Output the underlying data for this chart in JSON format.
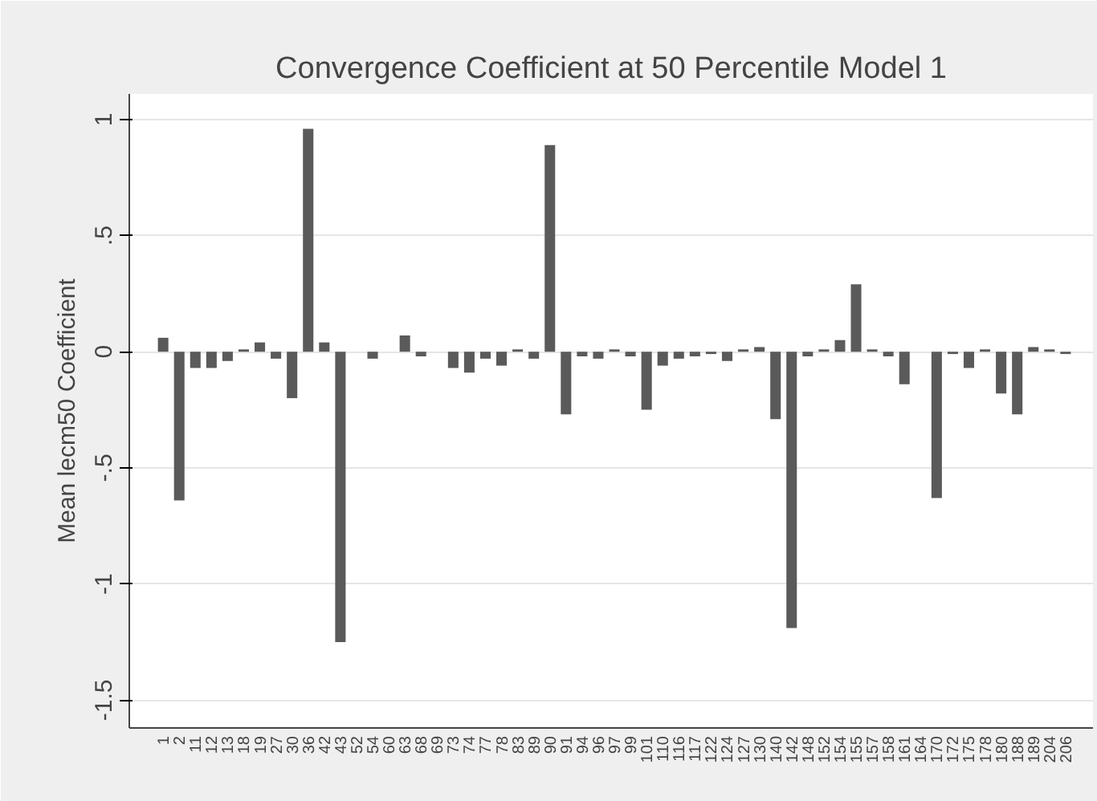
{
  "chart_data": {
    "type": "bar",
    "title": "Convergence Coefficient at 50 Percentile Model 1",
    "ylabel": "Mean lecm50 Coefficient",
    "categories": [
      "1",
      "2",
      "11",
      "12",
      "13",
      "18",
      "19",
      "27",
      "30",
      "36",
      "42",
      "43",
      "52",
      "54",
      "60",
      "63",
      "68",
      "69",
      "73",
      "74",
      "77",
      "78",
      "83",
      "89",
      "90",
      "91",
      "94",
      "96",
      "97",
      "99",
      "101",
      "110",
      "116",
      "117",
      "122",
      "124",
      "127",
      "130",
      "140",
      "142",
      "148",
      "152",
      "154",
      "155",
      "157",
      "158",
      "161",
      "164",
      "170",
      "172",
      "175",
      "178",
      "180",
      "188",
      "189",
      "204",
      "206"
    ],
    "values": [
      0.06,
      -0.64,
      -0.07,
      -0.07,
      -0.04,
      0.01,
      0.04,
      -0.03,
      -0.2,
      0.96,
      0.04,
      -1.25,
      0,
      -0.03,
      0,
      0.07,
      -0.02,
      0,
      -0.07,
      -0.09,
      -0.03,
      -0.06,
      0.01,
      -0.03,
      0.89,
      -0.27,
      -0.02,
      -0.03,
      0.01,
      -0.02,
      -0.25,
      -0.06,
      -0.03,
      -0.02,
      -0.01,
      -0.04,
      0.01,
      0.02,
      -0.29,
      -1.19,
      -0.02,
      0.01,
      0.05,
      0.29,
      0.01,
      -0.02,
      -0.14,
      0,
      -0.63,
      -0.01,
      -0.07,
      0.01,
      -0.18,
      -0.27,
      0.02,
      0.01,
      -0.01
    ],
    "color": "#5a5a5a",
    "ylim": [
      -1.62,
      1.11
    ],
    "yticks": [
      {
        "value": -1.5,
        "label": "-1.5"
      },
      -1,
      {
        "value": -0.5,
        "label": "-.5"
      },
      0,
      {
        "value": 0.5,
        "label": ".5"
      },
      1
    ],
    "grid": "y"
  }
}
